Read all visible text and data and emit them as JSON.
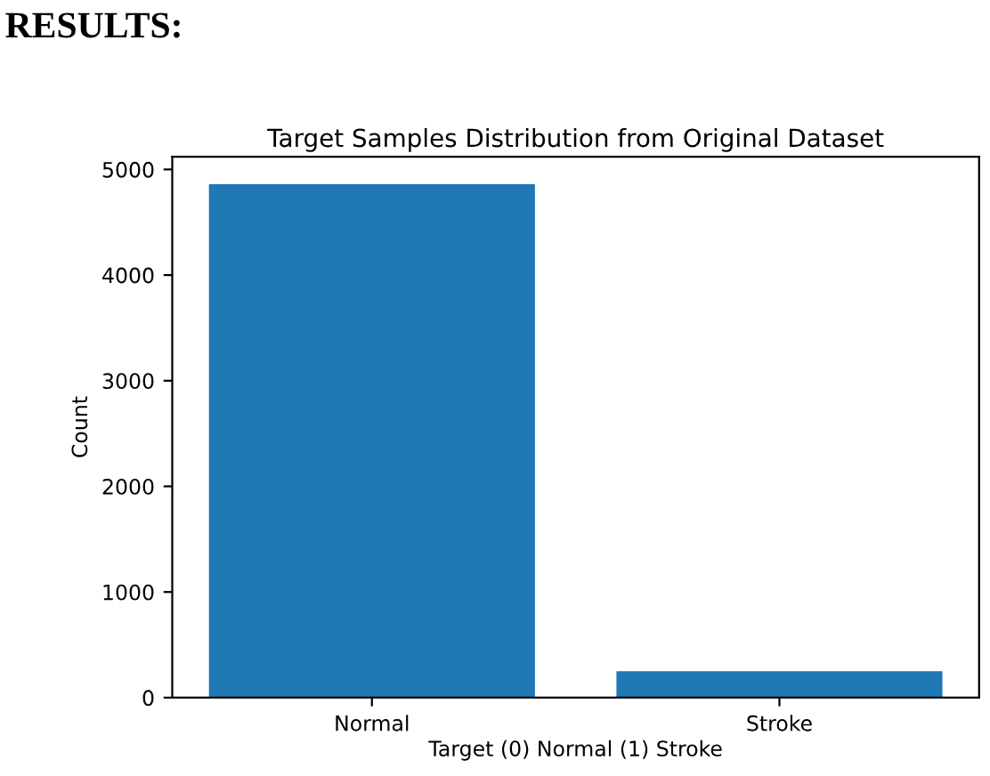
{
  "chart_data": {
    "type": "bar",
    "title": "Target Samples Distribution from Original Dataset",
    "xlabel": "Target (0) Normal (1) Stroke",
    "ylabel": "Count",
    "categories": [
      "Normal",
      "Stroke"
    ],
    "series": [
      {
        "color": "#1f77b4",
        "values": [
          4860,
          250
        ]
      }
    ],
    "ylim": [
      0,
      5120
    ],
    "yticks": [
      0,
      1000,
      2000,
      3000,
      4000,
      5000
    ],
    "annotations": [
      "RESULTS:"
    ],
    "grid": false,
    "legend": false
  }
}
